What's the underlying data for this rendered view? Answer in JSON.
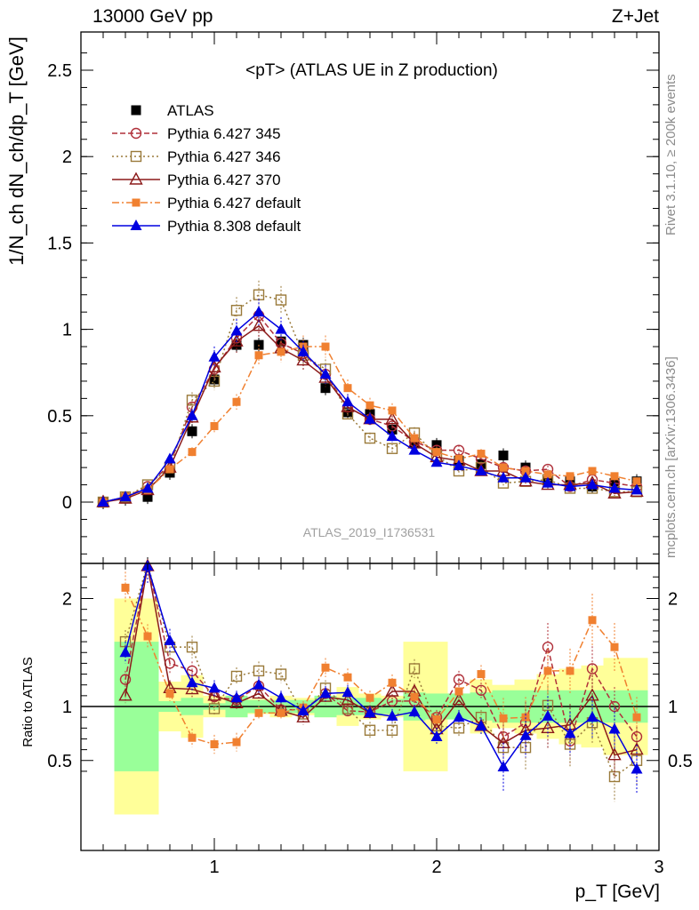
{
  "header": {
    "left": "13000 GeV pp",
    "right": "Z+Jet",
    "side_top": "Rivet 3.1.10, ≥ 200k events",
    "side_bottom": "mcplots.cern.ch [arXiv:1306.3436]"
  },
  "chart_data": [
    {
      "type": "scatter",
      "title": "<pT> (ATLAS UE in Z production)",
      "watermark": "ATLAS_2019_I1736531",
      "xlabel": "p_T [GeV]",
      "ylabel": "1/N_ch dN_ch/dp_T [GeV]",
      "xlim": [
        0.4,
        3.0
      ],
      "ylim": [
        -0.32,
        2.75
      ],
      "yticks": [
        "0",
        "0.5",
        "1",
        "1.5",
        "2",
        "2.5"
      ],
      "legend_position": "top-left",
      "x": [
        0.5,
        0.6,
        0.7,
        0.8,
        0.9,
        1.0,
        1.1,
        1.2,
        1.3,
        1.4,
        1.5,
        1.6,
        1.7,
        1.8,
        1.9,
        2.0,
        2.1,
        2.2,
        2.3,
        2.4,
        2.5,
        2.6,
        2.7,
        2.8,
        2.9
      ],
      "series": [
        {
          "name": "ATLAS",
          "color": "#000000",
          "values": [
            0.0,
            0.02,
            0.03,
            0.17,
            0.41,
            0.71,
            0.91,
            0.91,
            0.93,
            0.91,
            0.66,
            0.52,
            0.51,
            0.42,
            0.34,
            0.33,
            0.24,
            0.22,
            0.27,
            0.2,
            0.12,
            0.12,
            0.09,
            0.11,
            0.12
          ]
        },
        {
          "name": "Pythia 6.427 345",
          "color": "#b0303a",
          "values": [
            0.0,
            0.03,
            0.09,
            0.22,
            0.55,
            0.77,
            0.95,
            1.08,
            0.92,
            0.86,
            0.74,
            0.55,
            0.48,
            0.44,
            0.35,
            0.3,
            0.3,
            0.25,
            0.2,
            0.18,
            0.19,
            0.09,
            0.13,
            0.11,
            0.09
          ]
        },
        {
          "name": "Pythia 6.427 346",
          "color": "#9a7a3a",
          "values": [
            0.0,
            0.03,
            0.1,
            0.2,
            0.59,
            0.7,
            1.11,
            1.2,
            1.17,
            0.85,
            0.77,
            0.51,
            0.37,
            0.31,
            0.4,
            0.27,
            0.18,
            0.2,
            0.11,
            0.12,
            0.13,
            0.08,
            0.08,
            0.06,
            0.06
          ]
        },
        {
          "name": "Pythia 6.427 370",
          "color": "#8b1a1a",
          "values": [
            0.0,
            0.02,
            0.07,
            0.2,
            0.49,
            0.78,
            0.93,
            1.02,
            0.89,
            0.82,
            0.72,
            0.55,
            0.48,
            0.48,
            0.34,
            0.26,
            0.24,
            0.18,
            0.18,
            0.12,
            0.1,
            0.1,
            0.11,
            0.05,
            0.06
          ]
        },
        {
          "name": "Pythia 6.427 default",
          "color": "#f08030",
          "values": [
            0.0,
            0.03,
            0.07,
            0.19,
            0.29,
            0.44,
            0.58,
            0.85,
            0.87,
            0.9,
            0.9,
            0.66,
            0.56,
            0.53,
            0.37,
            0.29,
            0.25,
            0.28,
            0.2,
            0.18,
            0.16,
            0.15,
            0.18,
            0.15,
            0.12
          ]
        },
        {
          "name": "Pythia 8.308 default",
          "color": "#0000e0",
          "values": [
            0.0,
            0.03,
            0.08,
            0.25,
            0.5,
            0.84,
            0.99,
            1.1,
            1.0,
            0.87,
            0.74,
            0.58,
            0.48,
            0.38,
            0.3,
            0.23,
            0.21,
            0.18,
            0.14,
            0.14,
            0.11,
            0.09,
            0.1,
            0.08,
            0.07
          ]
        }
      ]
    },
    {
      "type": "line",
      "ylabel": "Ratio to ATLAS",
      "xlabel": "p_T [GeV]",
      "xlim": [
        0.4,
        3.0
      ],
      "ylim": [
        0.35,
        2.3
      ],
      "yticks": [
        "0.5",
        "1",
        "2"
      ],
      "xticks": [
        "1",
        "2",
        "3"
      ],
      "x": [
        0.6,
        0.7,
        0.8,
        0.9,
        1.0,
        1.1,
        1.2,
        1.3,
        1.4,
        1.5,
        1.6,
        1.7,
        1.8,
        1.9,
        2.0,
        2.1,
        2.2,
        2.3,
        2.4,
        2.5,
        2.6,
        2.7,
        2.8,
        2.9
      ],
      "band_green": [
        0.6,
        0.6,
        0.05,
        0.08,
        0.03,
        0.1,
        0.06,
        0.06,
        0.06,
        0.1,
        0.08,
        0.08,
        0.07,
        0.13,
        0.12,
        0.12,
        0.13,
        0.15,
        0.15,
        0.15,
        0.15,
        0.15,
        0.15,
        0.15
      ],
      "band_yellow": [
        1.0,
        1.0,
        0.23,
        0.29,
        0.1,
        0.1,
        0.07,
        0.1,
        0.08,
        0.1,
        0.18,
        0.12,
        0.1,
        0.6,
        0.6,
        0.12,
        0.25,
        0.2,
        0.25,
        0.3,
        0.35,
        0.38,
        0.45,
        0.45
      ],
      "series": [
        {
          "name": "Pythia 6.427 345",
          "color": "#b0303a",
          "values": [
            1.25,
            2.35,
            1.4,
            1.33,
            1.09,
            1.06,
            1.19,
            0.97,
            0.97,
            1.12,
            0.96,
            0.95,
            1.05,
            1.05,
            0.9,
            1.25,
            1.15,
            0.72,
            0.85,
            1.55,
            0.68,
            1.35,
            1.0,
            0.72
          ]
        },
        {
          "name": "Pythia 6.427 346",
          "color": "#9a7a3a",
          "values": [
            1.6,
            2.4,
            1.55,
            1.55,
            0.98,
            1.28,
            1.33,
            1.3,
            0.93,
            1.17,
            0.98,
            0.78,
            0.78,
            1.35,
            0.82,
            0.8,
            0.9,
            0.62,
            0.62,
            1.01,
            0.65,
            0.85,
            0.35,
            0.5
          ]
        },
        {
          "name": "Pythia 6.427 370",
          "color": "#8b1a1a",
          "values": [
            1.1,
            2.3,
            1.17,
            1.16,
            1.1,
            1.03,
            1.12,
            0.96,
            0.9,
            1.09,
            1.06,
            0.94,
            1.14,
            1.14,
            0.79,
            1.06,
            0.82,
            0.66,
            0.78,
            0.8,
            0.83,
            1.1,
            0.55,
            0.6
          ]
        },
        {
          "name": "Pythia 6.427 default",
          "color": "#f08030",
          "values": [
            2.1,
            1.65,
            1.12,
            0.71,
            0.65,
            0.67,
            0.94,
            0.94,
            0.99,
            1.36,
            1.27,
            1.08,
            1.22,
            1.09,
            0.88,
            1.14,
            1.3,
            0.89,
            0.9,
            1.33,
            1.33,
            1.8,
            1.55,
            0.9
          ]
        },
        {
          "name": "Pythia 8.308 default",
          "color": "#0000e0",
          "values": [
            1.5,
            2.3,
            1.61,
            1.22,
            1.17,
            1.08,
            1.2,
            1.08,
            0.96,
            1.12,
            1.13,
            0.94,
            0.91,
            0.95,
            0.72,
            0.9,
            0.82,
            0.44,
            0.73,
            0.91,
            0.75,
            0.9,
            0.79,
            0.42
          ]
        }
      ]
    }
  ]
}
